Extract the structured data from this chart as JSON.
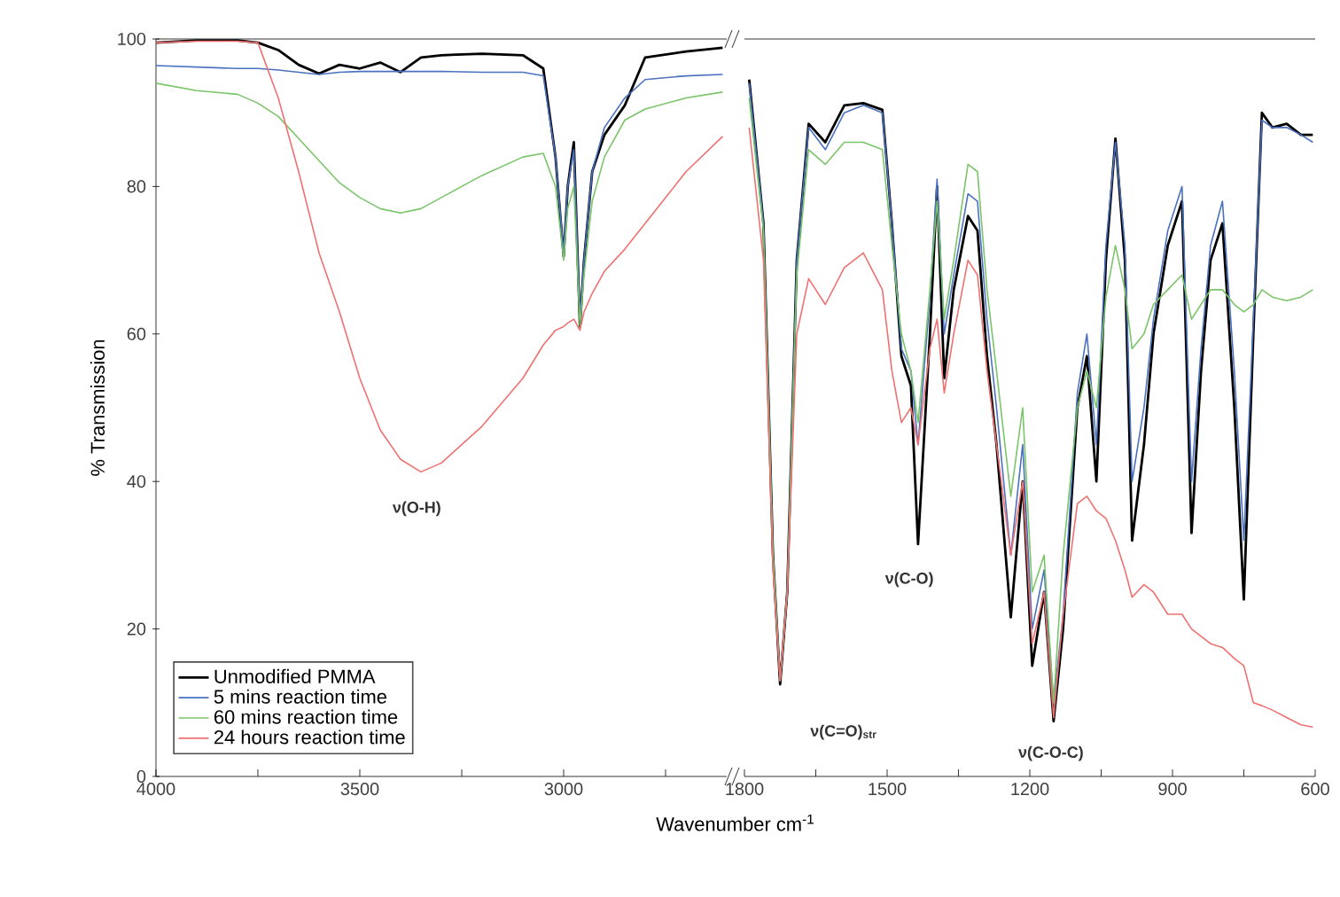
{
  "chart_data": [
    {
      "type": "line",
      "ylabel": "% Transmission",
      "xlabel": "Wavenumber cm$^{-1}$",
      "xlim": [
        4000,
        2600
      ],
      "ylim": [
        0,
        100
      ],
      "xticks": [
        4000,
        {
          "value": 3750,
          "label": null
        },
        3500,
        {
          "value": 3250,
          "label": null
        },
        3000,
        {
          "value": 2750,
          "label": null
        }
      ],
      "yticks": [
        0,
        20,
        40,
        60,
        80,
        100
      ],
      "legend": "bottom left",
      "x": [
        4000,
        3900,
        3800,
        3750,
        3700,
        3650,
        3600,
        3550,
        3500,
        3450,
        3400,
        3350,
        3300,
        3200,
        3100,
        3050,
        3020,
        3000,
        2990,
        2975,
        2960,
        2950,
        2930,
        2900,
        2850,
        2800,
        2700,
        2610
      ],
      "series": [
        {
          "name": "Unmodified PMMA",
          "color": "#000000",
          "values": [
            99.5,
            99.8,
            99.8,
            99.5,
            98.5,
            96.5,
            95.3,
            96.5,
            96,
            96.8,
            95.5,
            97.5,
            97.8,
            98,
            97.8,
            96,
            84,
            70.5,
            80,
            86,
            61,
            70,
            82,
            87,
            91,
            97.5,
            98.3,
            98.8
          ]
        },
        {
          "name": "5 mins reaction time",
          "color": "#4a70c0",
          "values": [
            96.4,
            96.2,
            96,
            96,
            95.8,
            95.5,
            95.2,
            95.5,
            95.6,
            95.6,
            95.6,
            95.6,
            95.6,
            95.5,
            95.5,
            95,
            84,
            71,
            80,
            85,
            62,
            70,
            82,
            88,
            92,
            94.5,
            95,
            95.2
          ]
        },
        {
          "name": "60 mins reaction time",
          "color": "#7ac46a",
          "values": [
            94,
            93,
            92.5,
            91.3,
            89.5,
            86.5,
            83.5,
            80.5,
            78.5,
            77,
            76.4,
            77,
            78.5,
            81.5,
            84,
            84.5,
            80,
            70,
            77,
            80,
            61,
            68,
            78,
            84,
            89,
            90.5,
            92,
            92.8
          ]
        },
        {
          "name": "24 hours reaction time",
          "color": "#f07070",
          "values": [
            99.5,
            99.7,
            99.7,
            99.5,
            92,
            82,
            71,
            63,
            54,
            47,
            43,
            41.3,
            42.5,
            47.5,
            54,
            58.5,
            60.5,
            61,
            61.5,
            62,
            60.5,
            63,
            65.5,
            68.5,
            71.5,
            75,
            82,
            86.8
          ]
        }
      ],
      "annotations": [
        "ν(O-H)"
      ]
    },
    {
      "type": "line",
      "xlim": [
        1800,
        600
      ],
      "ylim": [
        0,
        100
      ],
      "tick_labels": "x",
      "xticks": [
        1800,
        {
          "value": 1650,
          "label": null
        },
        1500,
        {
          "value": 1350,
          "label": null
        },
        1200,
        {
          "value": 1050,
          "label": null
        },
        900,
        {
          "value": 750,
          "label": null
        },
        600
      ],
      "yticks": [
        0,
        20,
        40,
        60,
        80,
        100
      ],
      "x": [
        1790,
        1760,
        1740,
        1725,
        1710,
        1690,
        1665,
        1630,
        1590,
        1550,
        1510,
        1490,
        1470,
        1450,
        1435,
        1410,
        1395,
        1380,
        1360,
        1330,
        1310,
        1290,
        1270,
        1240,
        1215,
        1195,
        1170,
        1150,
        1130,
        1100,
        1080,
        1060,
        1040,
        1020,
        1000,
        985,
        960,
        940,
        910,
        880,
        860,
        840,
        820,
        795,
        770,
        750,
        730,
        712,
        690,
        660,
        630,
        605
      ],
      "series": [
        {
          "color": "#000000",
          "values": [
            94.5,
            75,
            30,
            12.5,
            25,
            70,
            88.5,
            86,
            91,
            91.3,
            90.4,
            75,
            57,
            53,
            31.5,
            60,
            80,
            54,
            66,
            76,
            74,
            57,
            45,
            21.6,
            40,
            15,
            25,
            7.5,
            20,
            50,
            57,
            40,
            70,
            86.5,
            70,
            32,
            45,
            60,
            72,
            78,
            33,
            55,
            70,
            75,
            50,
            24,
            60,
            90,
            88,
            88.5,
            87,
            87
          ]
        },
        {
          "color": "#4a70c0",
          "values": [
            94,
            75,
            30,
            13,
            25,
            70,
            88,
            85,
            90,
            91,
            90,
            75,
            58,
            55,
            45,
            65,
            81,
            60,
            68,
            79,
            78,
            62,
            50,
            30,
            45,
            20,
            28,
            10,
            22,
            52,
            60,
            45,
            72,
            86,
            72,
            40,
            50,
            62,
            74,
            80,
            40,
            58,
            72,
            78,
            55,
            32,
            62,
            89,
            88,
            88,
            87,
            86
          ]
        },
        {
          "color": "#7ac46a",
          "values": [
            92,
            74,
            30,
            13,
            25,
            68,
            85,
            83,
            86,
            86,
            85,
            72,
            60,
            55,
            48,
            66,
            78,
            62,
            70,
            83,
            82,
            66,
            55,
            38,
            50,
            25,
            30,
            10,
            30,
            50,
            55,
            50,
            65,
            72,
            66,
            58,
            60,
            64,
            66,
            68,
            62,
            64,
            66,
            66,
            64,
            63,
            64,
            66,
            65,
            64.5,
            65,
            66
          ]
        },
        {
          "color": "#f07070",
          "values": [
            88,
            70,
            28,
            13,
            25,
            60,
            67.5,
            64,
            69,
            71,
            66,
            55,
            48,
            50,
            45,
            58,
            62,
            52,
            60,
            70,
            68,
            55,
            45,
            30,
            40,
            18,
            25,
            8,
            22,
            37,
            38,
            36,
            35,
            32,
            28,
            24.3,
            26,
            25,
            22,
            22,
            20,
            19,
            18,
            17.5,
            16,
            15,
            10,
            9.6,
            9,
            8,
            7,
            6.7
          ]
        }
      ],
      "annotations": [
        "ν(C=O)$_{str}$",
        "ν(C-O)",
        "ν(C-O-C)"
      ]
    }
  ]
}
